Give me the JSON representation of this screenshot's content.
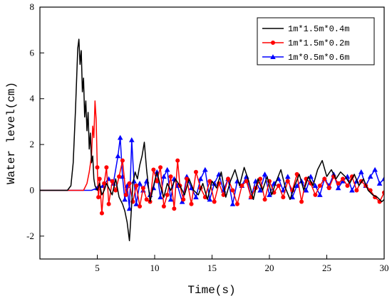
{
  "chart_data": {
    "type": "line",
    "title": "",
    "xlabel": "Time(s)",
    "ylabel": "Water level(cm)",
    "xlim": [
      0,
      30
    ],
    "ylim": [
      -3,
      8
    ],
    "xticks": [
      5,
      10,
      15,
      20,
      25,
      30
    ],
    "yticks": [
      -2,
      0,
      2,
      4,
      6,
      8
    ],
    "grid": false,
    "legend_position": "top-right",
    "series": [
      {
        "name": "1m*1.5m*0.4m",
        "color": "#000000",
        "marker": "none",
        "x": [
          0,
          2.4,
          2.7,
          2.9,
          3.1,
          3.3,
          3.4,
          3.5,
          3.6,
          3.7,
          3.8,
          3.9,
          4.0,
          4.1,
          4.2,
          4.3,
          4.4,
          4.5,
          4.6,
          4.7,
          4.8,
          5.0,
          5.2,
          5.4,
          5.6,
          5.8,
          6.0,
          6.3,
          6.6,
          6.9,
          7.2,
          7.4,
          7.6,
          7.8,
          7.95,
          8.1,
          8.3,
          8.5,
          8.7,
          8.9,
          9.1,
          9.3,
          9.6,
          9.9,
          10.2,
          10.5,
          10.8,
          11.1,
          11.4,
          11.8,
          12.2,
          12.6,
          13.0,
          13.4,
          13.8,
          14.2,
          14.6,
          15.0,
          15.4,
          15.8,
          16.2,
          16.6,
          17.0,
          17.4,
          17.8,
          18.2,
          18.6,
          19.0,
          19.4,
          19.8,
          20.2,
          20.6,
          21.0,
          21.4,
          21.8,
          22.2,
          22.6,
          23.0,
          23.4,
          23.8,
          24.2,
          24.6,
          25.0,
          25.4,
          25.8,
          26.2,
          26.6,
          27.0,
          27.4,
          27.8,
          28.2,
          28.6,
          29.0,
          29.4,
          29.8,
          30.0
        ],
        "y": [
          0,
          0,
          0.2,
          1.2,
          3.5,
          6.2,
          6.6,
          5.5,
          6.1,
          4.3,
          4.9,
          3.2,
          3.9,
          2.6,
          3.4,
          1.8,
          2.5,
          1.2,
          1.5,
          0.5,
          0.2,
          0.0,
          0.3,
          -0.2,
          0.0,
          0.3,
          0.1,
          -0.2,
          0.5,
          -0.3,
          -0.6,
          -0.9,
          -1.4,
          -2.2,
          -1.0,
          0.3,
          0.8,
          0.5,
          1.1,
          1.5,
          2.1,
          0.9,
          -0.5,
          0.2,
          0.8,
          0.2,
          -0.3,
          0.3,
          0.0,
          0.5,
          0.2,
          -0.2,
          0.5,
          0.0,
          -0.2,
          0.3,
          -0.4,
          0.4,
          0.1,
          0.8,
          -0.3,
          0.4,
          0.9,
          0.2,
          1.0,
          0.4,
          -0.4,
          0.5,
          0.0,
          0.6,
          -0.2,
          0.4,
          0.9,
          0.1,
          -0.4,
          0.2,
          0.7,
          0.0,
          0.6,
          0.2,
          0.9,
          1.3,
          0.6,
          0.9,
          0.5,
          0.8,
          0.6,
          0.3,
          0.7,
          0.2,
          0.5,
          0.0,
          -0.2,
          -0.3,
          -0.5,
          -0.4
        ]
      },
      {
        "name": "1m*1.5m*0.2m",
        "color": "#ff0000",
        "marker": "circle",
        "x": [
          0,
          3.8,
          4.1,
          4.3,
          4.5,
          4.6,
          4.7,
          4.8,
          4.9,
          5.0,
          5.1,
          5.2,
          5.4,
          5.6,
          5.8,
          6.0,
          6.3,
          6.6,
          6.9,
          7.2,
          7.5,
          7.8,
          8.1,
          8.4,
          8.7,
          9.0,
          9.3,
          9.6,
          9.9,
          10.2,
          10.5,
          10.8,
          11.1,
          11.4,
          11.7,
          12.0,
          12.2,
          12.5,
          12.8,
          13.2,
          13.6,
          14.0,
          14.4,
          14.8,
          15.2,
          15.6,
          16.0,
          16.4,
          16.8,
          17.2,
          17.6,
          18.0,
          18.4,
          18.8,
          19.2,
          19.6,
          20.0,
          20.4,
          20.8,
          21.2,
          21.6,
          22.0,
          22.4,
          22.8,
          23.2,
          23.6,
          24.0,
          24.4,
          24.8,
          25.2,
          25.6,
          26.0,
          26.4,
          26.8,
          27.2,
          27.6,
          28.0,
          28.4,
          28.8,
          29.2,
          29.6,
          30.0
        ],
        "y": [
          0,
          0,
          0.3,
          0.8,
          1.5,
          2.8,
          2.3,
          3.9,
          3.1,
          1.0,
          -0.3,
          0.5,
          -1.0,
          0.3,
          1.0,
          -0.6,
          0.4,
          0.0,
          0.6,
          1.3,
          -0.2,
          0.3,
          -0.5,
          0.2,
          -0.7,
          0.1,
          -0.4,
          -0.5,
          0.9,
          0.4,
          1.0,
          -0.7,
          -0.2,
          0.6,
          -0.8,
          1.3,
          0.2,
          -0.4,
          0.5,
          -0.6,
          0.8,
          0.1,
          -0.3,
          0.4,
          -0.5,
          0.3,
          -0.2,
          0.5,
          0.0,
          -0.6,
          0.2,
          0.4,
          -0.3,
          0.1,
          0.5,
          -0.4,
          0.4,
          -0.1,
          0.2,
          -0.3,
          0.4,
          0.0,
          0.7,
          -0.5,
          0.5,
          0.3,
          -0.2,
          0.2,
          0.5,
          0.1,
          0.6,
          0.3,
          0.5,
          0.2,
          0.6,
          0.0,
          0.4,
          0.2,
          0.0,
          -0.3,
          -0.5,
          -0.1
        ]
      },
      {
        "name": "1m*0.5m*0.6m",
        "color": "#0000ff",
        "marker": "triangle",
        "x": [
          0,
          4.5,
          5.0,
          5.5,
          6.0,
          6.4,
          6.8,
          7.0,
          7.2,
          7.4,
          7.6,
          7.8,
          8.0,
          8.2,
          8.4,
          8.7,
          9.0,
          9.3,
          9.6,
          9.9,
          10.2,
          10.5,
          10.8,
          11.1,
          11.4,
          11.7,
          12.0,
          12.4,
          12.8,
          13.2,
          13.6,
          14.0,
          14.4,
          14.8,
          15.2,
          15.6,
          16.0,
          16.4,
          16.8,
          17.2,
          17.6,
          18.0,
          18.4,
          18.8,
          19.2,
          19.6,
          20.0,
          20.4,
          20.8,
          21.2,
          21.6,
          22.0,
          22.4,
          22.8,
          23.2,
          23.6,
          24.0,
          24.4,
          24.8,
          25.2,
          25.6,
          26.0,
          26.4,
          26.8,
          27.2,
          27.6,
          28.0,
          28.4,
          28.8,
          29.2,
          29.6,
          30.0
        ],
        "y": [
          0,
          0,
          0.1,
          0.2,
          0.5,
          0.3,
          1.5,
          2.3,
          0.6,
          -0.4,
          0.2,
          -0.8,
          2.2,
          0.4,
          -0.6,
          0.3,
          0.0,
          0.4,
          -0.2,
          0.1,
          0.8,
          -0.3,
          0.6,
          0.9,
          -0.4,
          0.5,
          0.2,
          -0.5,
          0.6,
          0.1,
          -0.3,
          0.5,
          0.9,
          -0.4,
          0.3,
          0.7,
          0.0,
          0.5,
          -0.6,
          0.4,
          0.2,
          0.6,
          -0.3,
          0.4,
          0.0,
          0.7,
          -0.2,
          0.3,
          0.5,
          0.0,
          0.6,
          -0.3,
          0.2,
          0.4,
          0.0,
          0.6,
          0.2,
          -0.2,
          0.5,
          0.2,
          0.7,
          0.1,
          0.4,
          0.6,
          0.0,
          0.4,
          0.8,
          0.2,
          0.6,
          0.9,
          0.3,
          0.5
        ]
      }
    ]
  }
}
